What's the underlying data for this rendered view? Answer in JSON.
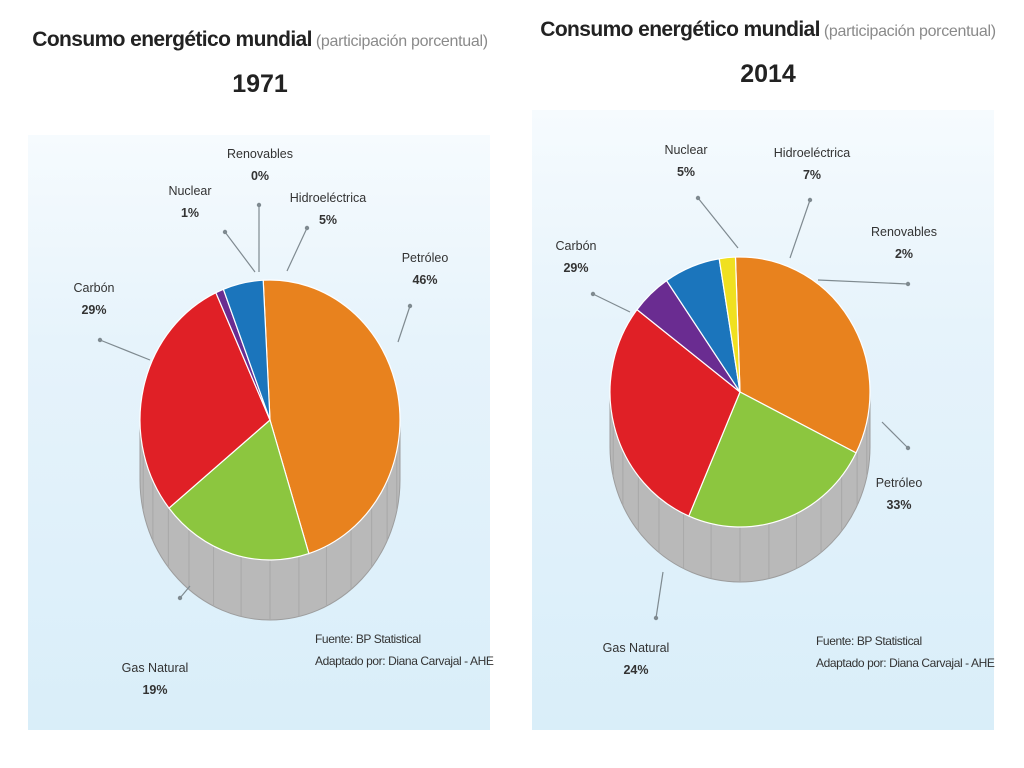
{
  "charts": [
    {
      "title": "Consumo energético mundial",
      "subtitle": "(participación porcentual)",
      "year": "1971",
      "source": "Fuente: BP Statistical",
      "adapted": "Adaptado por: Diana Carvajal - AHE",
      "slices": [
        {
          "name": "Petróleo",
          "label": "46%"
        },
        {
          "name": "Gas Natural",
          "label": "19%"
        },
        {
          "name": "Carbón",
          "label": "29%"
        },
        {
          "name": "Nuclear",
          "label": "1%"
        },
        {
          "name": "Renovables",
          "label": "0%"
        },
        {
          "name": "Hidroeléctrica",
          "label": "5%"
        }
      ]
    },
    {
      "title": "Consumo energético mundial",
      "subtitle": "(participación porcentual)",
      "year": "2014",
      "source": "Fuente: BP Statistical",
      "adapted": "Adaptado por: Diana Carvajal - AHE",
      "slices": [
        {
          "name": "Petróleo",
          "label": "33%"
        },
        {
          "name": "Gas Natural",
          "label": "24%"
        },
        {
          "name": "Carbón",
          "label": "29%"
        },
        {
          "name": "Nuclear",
          "label": "5%"
        },
        {
          "name": "Hidroeléctrica",
          "label": "7%"
        },
        {
          "name": "Renovables",
          "label": "2%"
        }
      ]
    }
  ],
  "chart_data": [
    {
      "type": "pie",
      "title": "Consumo energético mundial (participación porcentual) 1971",
      "categories": [
        "Petróleo",
        "Gas Natural",
        "Carbón",
        "Nuclear",
        "Renovables",
        "Hidroeléctrica"
      ],
      "values": [
        46,
        19,
        29,
        1,
        0,
        5
      ],
      "colors": [
        "#e8821e",
        "#8cc63f",
        "#e02026",
        "#6a2c91",
        "#f0e020",
        "#1b75bc"
      ]
    },
    {
      "type": "pie",
      "title": "Consumo energético mundial (participación porcentual) 2014",
      "categories": [
        "Petróleo",
        "Gas Natural",
        "Carbón",
        "Nuclear",
        "Hidroeléctrica",
        "Renovables"
      ],
      "values": [
        33,
        24,
        29,
        5,
        7,
        2
      ],
      "colors": [
        "#e8821e",
        "#8cc63f",
        "#e02026",
        "#6a2c91",
        "#1b75bc",
        "#f0e020"
      ]
    }
  ]
}
